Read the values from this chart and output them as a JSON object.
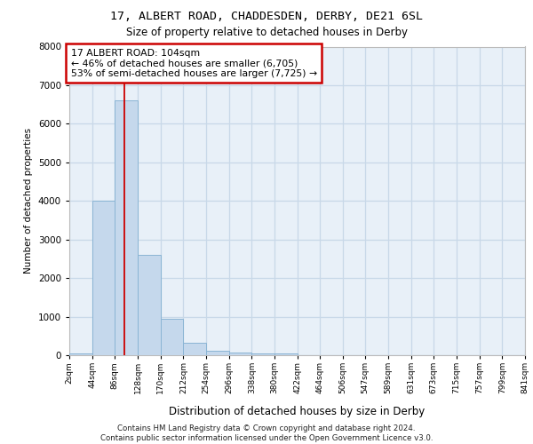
{
  "title1": "17, ALBERT ROAD, CHADDESDEN, DERBY, DE21 6SL",
  "title2": "Size of property relative to detached houses in Derby",
  "xlabel": "Distribution of detached houses by size in Derby",
  "ylabel": "Number of detached properties",
  "footnote": "Contains HM Land Registry data © Crown copyright and database right 2024.\nContains public sector information licensed under the Open Government Licence v3.0.",
  "bar_color": "#c5d8ec",
  "bar_edge_color": "#8ab4d4",
  "grid_color": "#c8d8e8",
  "background_color": "#e8f0f8",
  "property_line_color": "#cc0000",
  "annotation_text": "17 ALBERT ROAD: 104sqm\n← 46% of detached houses are smaller (6,705)\n53% of semi-detached houses are larger (7,725) →",
  "annotation_box_edgecolor": "#cc0000",
  "bin_edges": [
    2,
    44,
    86,
    128,
    170,
    212,
    254,
    296,
    338,
    380,
    422,
    464,
    506,
    547,
    589,
    631,
    673,
    715,
    757,
    799,
    841
  ],
  "bin_labels": [
    "2sqm",
    "44sqm",
    "86sqm",
    "128sqm",
    "170sqm",
    "212sqm",
    "254sqm",
    "296sqm",
    "338sqm",
    "380sqm",
    "422sqm",
    "464sqm",
    "506sqm",
    "547sqm",
    "589sqm",
    "631sqm",
    "673sqm",
    "715sqm",
    "757sqm",
    "799sqm",
    "841sqm"
  ],
  "bar_heights": [
    50,
    4000,
    6600,
    2600,
    950,
    325,
    125,
    75,
    50,
    50,
    0,
    0,
    0,
    0,
    0,
    0,
    0,
    0,
    0,
    0
  ],
  "property_size": 104,
  "ylim": [
    0,
    8000
  ],
  "yticks": [
    0,
    1000,
    2000,
    3000,
    4000,
    5000,
    6000,
    7000,
    8000
  ]
}
